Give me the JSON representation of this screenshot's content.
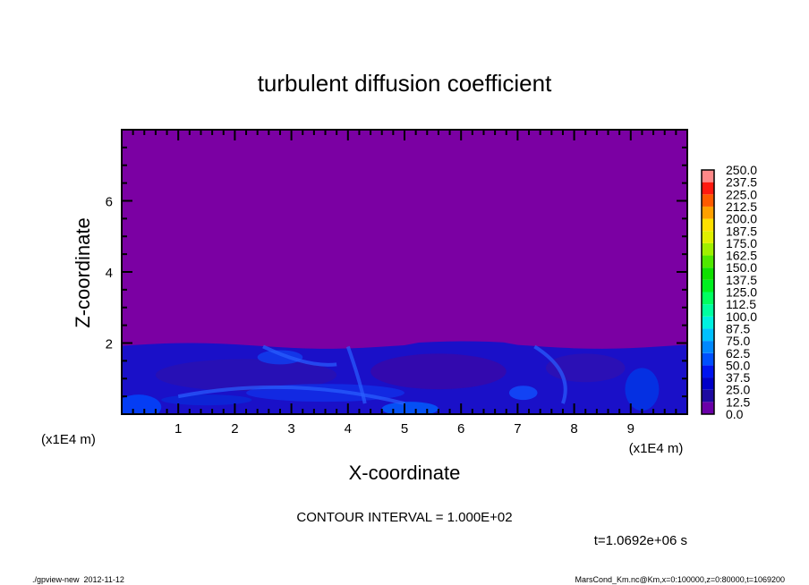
{
  "chart_data": {
    "type": "heatmap",
    "title": "turbulent diffusion coefficient",
    "xlabel": "X-coordinate",
    "ylabel": "Z-coordinate",
    "x_unit_label": "(x1E4 m)",
    "y_unit_label": "(x1E4 m)",
    "xlim": [
      0,
      10
    ],
    "ylim": [
      0,
      8
    ],
    "x_ticks": [
      "1",
      "2",
      "3",
      "4",
      "5",
      "6",
      "7",
      "8",
      "9"
    ],
    "y_ticks": [
      "2",
      "4",
      "6"
    ],
    "boundary_layer_top_approx": 2.0,
    "background_color": "#7b00a3",
    "colorbar": {
      "levels": [
        "0.0",
        "12.5",
        "25.0",
        "37.5",
        "50.0",
        "62.5",
        "75.0",
        "87.5",
        "100.0",
        "112.5",
        "125.0",
        "137.5",
        "150.0",
        "162.5",
        "175.0",
        "187.5",
        "200.0",
        "212.5",
        "225.0",
        "237.5",
        "250.0"
      ],
      "colors": [
        "#6a00a8",
        "#1e0aa0",
        "#0000c8",
        "#0014f0",
        "#0050ff",
        "#0088ff",
        "#00c0ff",
        "#00f0e0",
        "#00ffa0",
        "#00ff60",
        "#00f020",
        "#10e000",
        "#50e800",
        "#a0f000",
        "#e0f000",
        "#ffe000",
        "#ffa000",
        "#ff5a00",
        "#ff1a10",
        "#ff4848"
      ],
      "top_color": "#ff8888"
    },
    "contour_interval_text": "CONTOUR INTERVAL = 1.000E+02",
    "time_text": "t=1.0692e+06 s"
  },
  "footer": {
    "left": "./gpview-new  2012-11-12",
    "right": "MarsCond_Km.nc@Km,x=0:100000,z=0:80000,t=1069200"
  }
}
